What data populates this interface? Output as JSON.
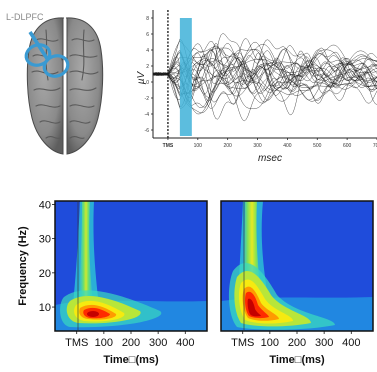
{
  "brain": {
    "label": "L-DLPFC"
  },
  "chart_data": [
    {
      "type": "line",
      "title": "",
      "xlabel": "msec",
      "ylabel": "µV",
      "x_tick_labels": [
        "TMS",
        "100",
        "200",
        "300",
        "400",
        "500",
        "600",
        "700"
      ],
      "y_tick_labels": [
        "8",
        "6",
        "4",
        "2",
        "0",
        "-2",
        "-4",
        "-6"
      ],
      "xlim": [
        -50,
        700
      ],
      "ylim": [
        -7,
        9
      ],
      "grid": false,
      "markers": [
        {
          "label": "TMS",
          "x": 0
        },
        {
          "label": "",
          "x_range": [
            40,
            80
          ]
        }
      ]
    },
    {
      "type": "heatmap",
      "title": "",
      "xlabel": "Time□(ms)",
      "ylabel": "Frequency (Hz)",
      "x_tick_labels": [
        "TMS",
        "100",
        "200",
        "300",
        "400"
      ],
      "y_tick_labels": [
        "10",
        "20",
        "30",
        "40"
      ],
      "xlim": [
        -80,
        480
      ],
      "ylim": [
        3,
        41
      ],
      "hot_spot": {
        "time_ms": 110,
        "freq_hz": 8
      }
    },
    {
      "type": "heatmap",
      "title": "",
      "xlabel": "Time□(ms)",
      "ylabel": "",
      "x_tick_labels": [
        "TMS",
        "100",
        "200",
        "300",
        "400"
      ],
      "y_tick_labels": [],
      "xlim": [
        -80,
        480
      ],
      "ylim": [
        3,
        41
      ],
      "hot_spot": {
        "time_ms": 60,
        "freq_hz": 12
      }
    }
  ]
}
